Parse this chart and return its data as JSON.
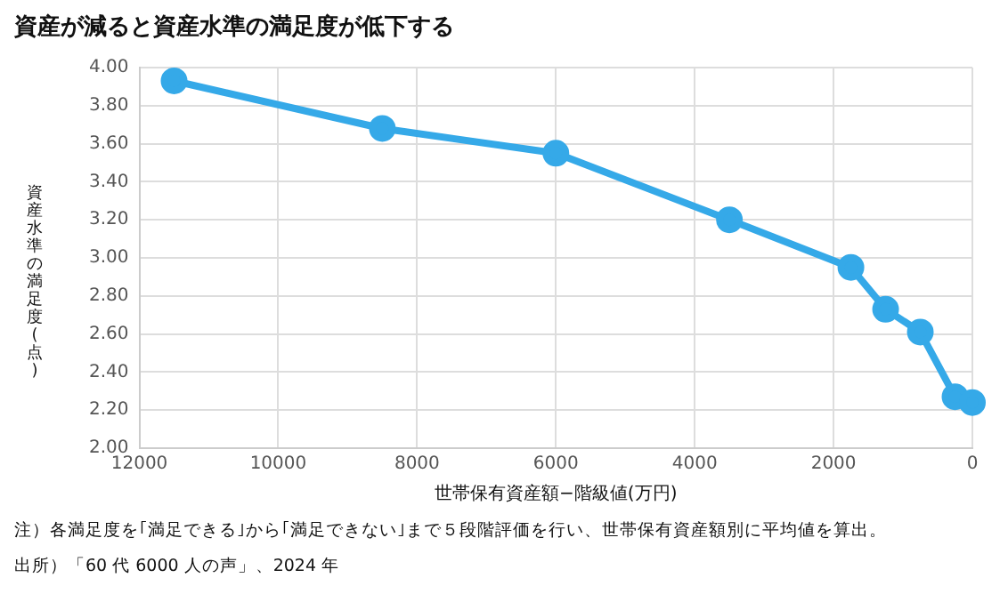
{
  "chart_data": {
    "type": "line",
    "title": "資産が減ると資産水準の満足度が低下する",
    "xlabel": "世帯保有資産額−階級値(万円)",
    "ylabel": "資産水準の満足度(点)",
    "x": [
      11500,
      8500,
      6000,
      3500,
      1750,
      1250,
      750,
      250,
      0
    ],
    "series": [
      {
        "color": "#35a9e8",
        "values": [
          3.93,
          3.68,
          3.55,
          3.2,
          2.95,
          2.73,
          2.61,
          2.27,
          2.24
        ]
      }
    ],
    "xlim": [
      12000,
      0
    ],
    "xticks": [
      12000,
      10000,
      8000,
      6000,
      4000,
      2000,
      0
    ],
    "ylim": [
      2,
      4
    ],
    "yticks": [
      {
        "value": 2,
        "label": "2.00"
      },
      {
        "value": 2.2,
        "label": "2.20"
      },
      {
        "value": 2.4,
        "label": "2.40"
      },
      {
        "value": 2.6,
        "label": "2.60"
      },
      {
        "value": 2.8,
        "label": "2.80"
      },
      {
        "value": 3,
        "label": "3.00"
      },
      {
        "value": 3.2,
        "label": "3.20"
      },
      {
        "value": 3.4,
        "label": "3.40"
      },
      {
        "value": 3.6,
        "label": "3.60"
      },
      {
        "value": 3.8,
        "label": "3.80"
      },
      {
        "value": 4,
        "label": "4.00"
      }
    ],
    "grid": true,
    "legend": false,
    "marker": "circle",
    "line_style": "solid",
    "annotations": [
      "注）各満足度を｢満足できる｣から｢満足できない｣まで５段階評価を行い、世帯保有資産額別に平均値を算出。",
      "出所）「60 代 6000 人の声」、2024 年"
    ]
  }
}
